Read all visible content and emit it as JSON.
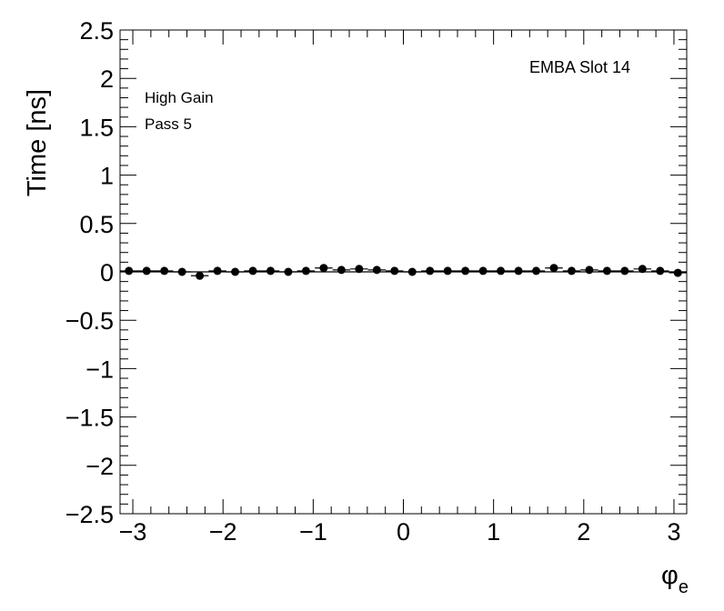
{
  "chart_data": {
    "type": "scatter",
    "ylabel": "Time [ns]",
    "xlabel_main": "φ",
    "xlabel_sub": "e",
    "xlim": [
      -3.1416,
      3.1416
    ],
    "ylim": [
      -2.5,
      2.5
    ],
    "x_ticks": [
      -3,
      -2,
      -1,
      0,
      1,
      2,
      3
    ],
    "x_tick_labels": [
      "−3",
      "−2",
      "−1",
      "0",
      "1",
      "2",
      "3"
    ],
    "y_ticks": [
      -2.5,
      -2,
      -1.5,
      -1,
      -0.5,
      0,
      0.5,
      1,
      1.5,
      2,
      2.5
    ],
    "y_tick_labels": [
      "−2.5",
      "−2",
      "−1.5",
      "−1",
      "−0.5",
      "0",
      "0.5",
      "1",
      "1.5",
      "2",
      "2.5"
    ],
    "annotations": [
      "High Gain",
      "Pass 5"
    ],
    "label_right": "EMBA Slot 14",
    "grid": false,
    "marker_color": "#000000",
    "series": [
      {
        "x": [
          -3.0434,
          -2.8471,
          -2.6507,
          -2.4544,
          -2.258,
          -2.0617,
          -1.8653,
          -1.669,
          -1.4726,
          -1.2763,
          -1.0799,
          -0.8836,
          -0.6872,
          -0.4909,
          -0.2945,
          -0.0982,
          0.0982,
          0.2945,
          0.4909,
          0.6872,
          0.8836,
          1.0799,
          1.2763,
          1.4726,
          1.669,
          1.8653,
          2.0617,
          2.258,
          2.4544,
          2.6507,
          2.8471,
          3.0434
        ],
        "y": [
          0.01,
          0.01,
          0.01,
          0.0,
          -0.04,
          0.01,
          0.0,
          0.01,
          0.01,
          0.0,
          0.01,
          0.04,
          0.02,
          0.03,
          0.02,
          0.01,
          0.0,
          0.01,
          0.01,
          0.01,
          0.01,
          0.01,
          0.01,
          0.01,
          0.04,
          0.01,
          0.02,
          0.01,
          0.01,
          0.03,
          0.01,
          -0.01
        ]
      }
    ]
  }
}
